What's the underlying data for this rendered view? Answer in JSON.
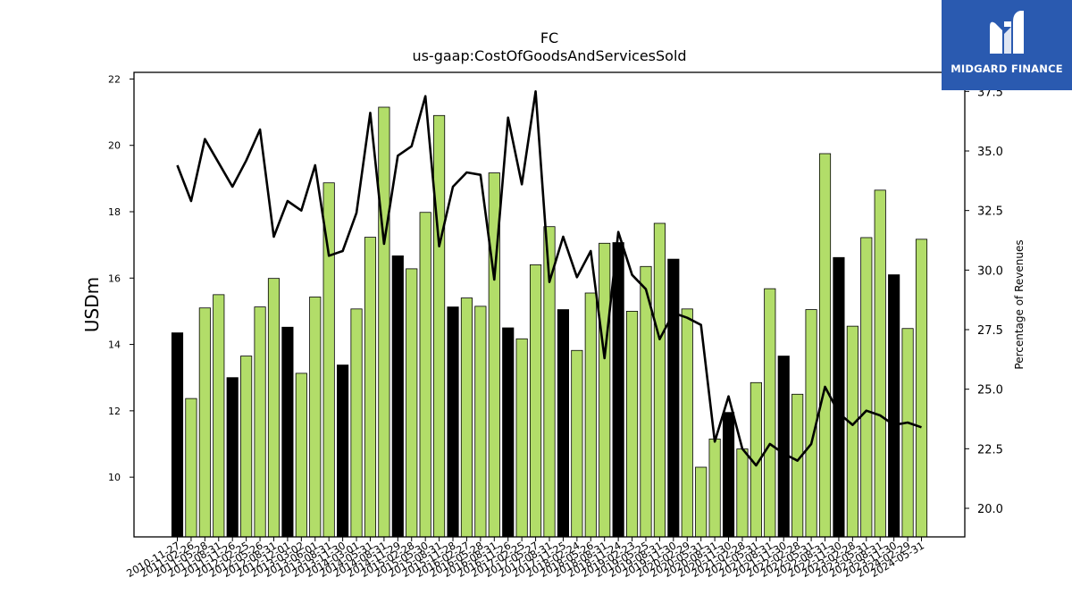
{
  "chart_data": {
    "type": "bar",
    "title": "FC",
    "subtitle": "us-gaap:CostOfGoodsAndServicesSold",
    "ylabel": "USDm",
    "ylabel_right": "Percentage of Revenues",
    "ylim": [
      8.2,
      22.2
    ],
    "ylim_right": [
      18.8,
      38.3
    ],
    "yticks": [
      10,
      12,
      14,
      16,
      18,
      20,
      22
    ],
    "yticks_right": [
      20.0,
      22.5,
      25.0,
      27.5,
      30.0,
      32.5,
      35.0,
      37.5
    ],
    "grid": false,
    "colors": {
      "annual": "#000000",
      "quarter": "#b2dd69",
      "line": "#000000"
    },
    "x_labels": [
      "2010-11-27",
      "2011-02-26",
      "2011-05-28",
      "2011-08-31",
      "2011-11-26",
      "2012-02-25",
      "2012-05-26",
      "2012-08-31",
      "2012-12-01",
      "2013-03-02",
      "2013-06-01",
      "2013-08-31",
      "2013-11-30",
      "2014-03-01",
      "2014-05-31",
      "2014-08-31",
      "2014-11-29",
      "2015-02-28",
      "2015-05-30",
      "2015-08-31",
      "2015-11-28",
      "2016-02-27",
      "2016-05-28",
      "2016-08-31",
      "2016-11-26",
      "2017-02-25",
      "2017-05-27",
      "2017-08-31",
      "2017-11-25",
      "2018-02-24",
      "2018-05-26",
      "2018-08-31",
      "2018-11-24",
      "2019-02-23",
      "2019-05-25",
      "2019-08-31",
      "2019-11-30",
      "2020-02-29",
      "2020-05-31",
      "2020-08-31",
      "2020-11-30",
      "2021-02-28",
      "2021-05-31",
      "2021-08-31",
      "2021-11-30",
      "2022-02-28",
      "2022-05-31",
      "2022-08-31",
      "2022-11-30",
      "2023-02-28",
      "2023-05-31",
      "2023-08-31",
      "2023-11-30",
      "2024-02-29",
      "2024-05-31"
    ],
    "x_labels_shown": [
      "2010-11-27",
      "2011-02-26",
      "2011-05-28",
      "2011-08-31",
      "2011-11-26",
      "2012-02-25",
      "2012-05-26",
      "2012-08-31",
      "2012-12-01",
      "2013-03-02",
      "2013-06-01",
      "2013-08-31",
      "2013-11-30",
      "2014-03-01",
      "2014-05-31",
      "2014-08-31",
      "2014-11-29",
      "2015-02-28",
      "2015-05-30",
      "2015-08-31",
      "2015-11-28",
      "2016-02-27",
      "2016-05-28",
      "2016-08-31",
      "2016-11-26",
      "2017-02-25",
      "2017-05-27",
      "2017-08-31",
      "2017-11-25",
      "2018-02-24",
      "2018-05-26",
      "2018-08-31",
      "2018-11-24",
      "2019-02-23",
      "2019-05-25",
      "2019-08-31",
      "2019-11-30",
      "2020-02-29",
      "2020-05-31",
      "2020-08-31",
      "2020-11-30",
      "2021-02-28",
      "2021-05-31",
      "2021-08-31",
      "2021-11-30",
      "2022-02-28",
      "2022-05-31",
      "2022-08-31",
      "2022-11-30",
      "2023-02-28",
      "2023-05-31",
      "2023-08-31",
      "2023-11-30",
      "2024-02-29",
      "2024-05-31"
    ],
    "values": [
      14.35,
      12.37,
      15.1,
      15.5,
      13.0,
      13.65,
      15.13,
      15.99,
      14.52,
      13.13,
      15.43,
      18.87,
      13.38,
      15.07,
      17.23,
      21.15,
      16.67,
      16.28,
      17.98,
      20.9,
      15.13,
      15.4,
      15.15,
      19.17,
      14.5,
      14.17,
      16.4,
      17.55,
      15.05,
      13.82,
      15.55,
      17.05,
      17.07,
      15.0,
      16.35,
      17.65,
      16.57,
      15.07,
      10.3,
      11.15,
      11.95,
      10.85,
      12.85,
      15.68,
      13.65,
      12.5,
      15.05,
      19.75,
      16.62,
      14.55,
      17.22,
      18.65,
      16.1,
      14.48,
      17.17
    ],
    "annual": [
      true,
      false,
      false,
      false,
      true,
      false,
      false,
      false,
      true,
      false,
      false,
      false,
      true,
      false,
      false,
      false,
      true,
      false,
      false,
      false,
      true,
      false,
      false,
      false,
      true,
      false,
      false,
      false,
      true,
      false,
      false,
      false,
      true,
      false,
      false,
      false,
      true,
      false,
      false,
      false,
      true,
      false,
      false,
      false,
      true,
      false,
      false,
      false,
      true,
      false,
      false,
      false,
      true,
      false,
      false
    ],
    "pct": [
      34.4,
      32.9,
      35.5,
      34.5,
      33.5,
      34.6,
      35.9,
      31.4,
      32.9,
      32.5,
      34.4,
      30.6,
      30.8,
      32.4,
      36.6,
      31.1,
      34.8,
      35.2,
      37.3,
      31.0,
      33.5,
      34.1,
      34.0,
      29.6,
      36.4,
      33.6,
      37.5,
      29.5,
      31.4,
      29.7,
      30.8,
      26.3,
      31.6,
      29.8,
      29.2,
      27.1,
      28.2,
      28.0,
      27.7,
      22.8,
      24.7,
      22.5,
      21.8,
      22.7,
      22.3,
      22.0,
      22.7,
      25.1,
      24.0,
      23.5,
      24.1,
      23.9,
      23.5,
      23.6,
      23.4
    ]
  },
  "logo": {
    "text": "MIDGARD FINANCE",
    "bg": "#2a5ab0"
  }
}
